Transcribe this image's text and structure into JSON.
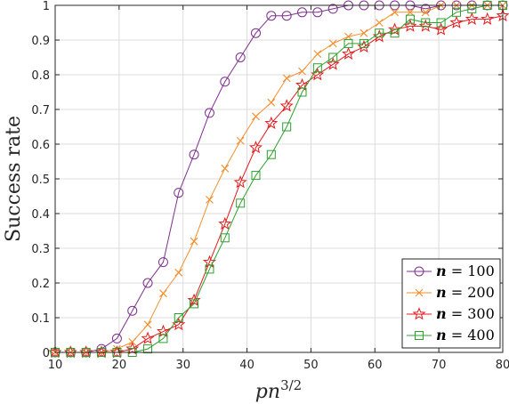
{
  "chart_data": {
    "type": "line",
    "xlabel": "pn",
    "xlabel_sup": "3/2",
    "ylabel": "Success rate",
    "xlim": [
      10,
      80
    ],
    "ylim": [
      0,
      1
    ],
    "grid": true,
    "legend_position": "bottom-right",
    "xticks": [
      "10",
      "20",
      "30",
      "40",
      "50",
      "60",
      "70",
      "80"
    ],
    "yticks": [
      "0",
      "0.1",
      "0.2",
      "0.3",
      "0.4",
      "0.5",
      "0.6",
      "0.7",
      "0.8",
      "0.9",
      "1"
    ],
    "x": [
      10,
      12.41,
      14.83,
      17.24,
      19.66,
      22.07,
      24.48,
      26.9,
      29.31,
      31.72,
      34.14,
      36.55,
      38.97,
      41.38,
      43.79,
      46.21,
      48.62,
      51.03,
      53.45,
      55.86,
      58.28,
      60.69,
      63.1,
      65.52,
      67.93,
      70.34,
      72.76,
      75.17,
      77.59,
      80
    ],
    "series": [
      {
        "name_var": "n",
        "name_eq": " = ",
        "name_val": "100",
        "color": "#7E2F8E",
        "marker": "circle",
        "values": [
          0,
          0,
          0,
          0.01,
          0.04,
          0.12,
          0.2,
          0.26,
          0.46,
          0.57,
          0.69,
          0.78,
          0.85,
          0.92,
          0.97,
          0.97,
          0.98,
          0.98,
          0.99,
          1,
          1,
          1,
          1,
          1,
          0.99,
          1,
          1,
          1,
          1,
          1
        ]
      },
      {
        "name_var": "n",
        "name_eq": " = ",
        "name_val": "200",
        "color": "#F28E2B",
        "marker": "x",
        "values": [
          0,
          0,
          0,
          0,
          0.01,
          0.03,
          0.08,
          0.17,
          0.23,
          0.32,
          0.44,
          0.53,
          0.61,
          0.68,
          0.72,
          0.79,
          0.81,
          0.86,
          0.89,
          0.91,
          0.92,
          0.95,
          0.98,
          0.98,
          0.98,
          1,
          1,
          1,
          1,
          1
        ]
      },
      {
        "name_var": "n",
        "name_eq": " = ",
        "name_val": "300",
        "color": "#E41A1C",
        "marker": "star",
        "values": [
          0,
          0,
          0,
          0,
          0,
          0.01,
          0.04,
          0.06,
          0.08,
          0.15,
          0.26,
          0.37,
          0.49,
          0.59,
          0.66,
          0.71,
          0.77,
          0.8,
          0.83,
          0.86,
          0.88,
          0.91,
          0.93,
          0.94,
          0.94,
          0.93,
          0.95,
          0.96,
          0.96,
          0.97
        ]
      },
      {
        "name_var": "n",
        "name_eq": " = ",
        "name_val": "400",
        "color": "#2CA02C",
        "marker": "square",
        "values": [
          0,
          0,
          0,
          0,
          0,
          0,
          0.01,
          0.04,
          0.1,
          0.14,
          0.24,
          0.33,
          0.43,
          0.51,
          0.57,
          0.65,
          0.75,
          0.82,
          0.85,
          0.89,
          0.89,
          0.92,
          0.92,
          0.96,
          0.95,
          0.95,
          0.98,
          0.99,
          1,
          1
        ]
      }
    ]
  }
}
